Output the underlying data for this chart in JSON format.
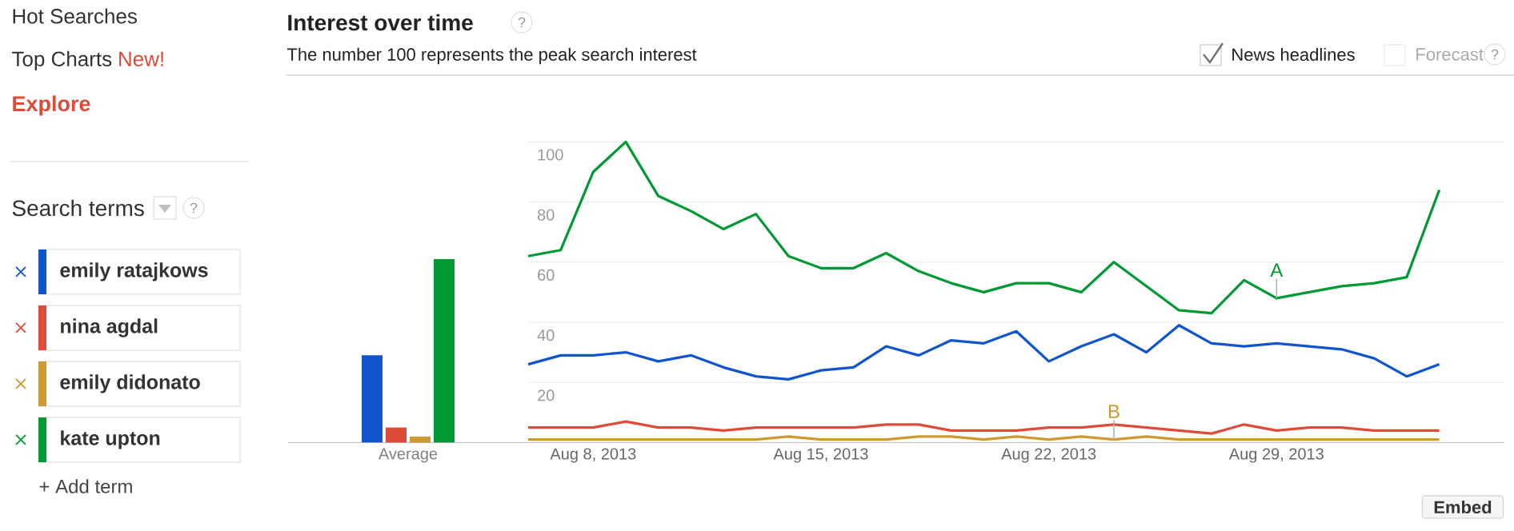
{
  "chart_data": [
    {
      "type": "bar",
      "title": "Interest over time",
      "subtitle": "The number 100 represents the peak search interest",
      "categories": [
        "Average"
      ],
      "ylim": [
        0,
        100
      ],
      "tick_labels": "x",
      "series": [
        {
          "color": "#1155cc",
          "values": [
            29
          ]
        },
        {
          "color": "#dd4b39",
          "values": [
            5
          ]
        },
        {
          "color": "#cc9933",
          "values": [
            2
          ]
        },
        {
          "color": "#009933",
          "values": [
            61
          ]
        }
      ]
    },
    {
      "type": "line",
      "x": [
        "2013-08-06",
        "2013-08-07",
        "2013-08-08",
        "2013-08-09",
        "2013-08-10",
        "2013-08-11",
        "2013-08-12",
        "2013-08-13",
        "2013-08-14",
        "2013-08-15",
        "2013-08-16",
        "2013-08-17",
        "2013-08-18",
        "2013-08-19",
        "2013-08-20",
        "2013-08-21",
        "2013-08-22",
        "2013-08-23",
        "2013-08-24",
        "2013-08-25",
        "2013-08-26",
        "2013-08-27",
        "2013-08-28",
        "2013-08-29",
        "2013-08-30",
        "2013-08-31",
        "2013-09-01",
        "2013-09-02",
        "2013-09-03"
      ],
      "xlim": [
        "2013-08-06",
        "2013-09-05"
      ],
      "xticks": [
        {
          "value": "2013-08-08",
          "label": "Aug 8, 2013"
        },
        {
          "value": "2013-08-15",
          "label": "Aug 15, 2013"
        },
        {
          "value": "2013-08-22",
          "label": "Aug 22, 2013"
        },
        {
          "value": "2013-08-29",
          "label": "Aug 29, 2013"
        }
      ],
      "ylim": [
        0,
        100
      ],
      "yticks": [
        20,
        40,
        60,
        80,
        100
      ],
      "grid": "y",
      "legend": "left",
      "marker": "none",
      "line_style": "solid",
      "series": [
        {
          "name": "emily ratajkows",
          "color": "#1155cc",
          "values": [
            26,
            29,
            29,
            30,
            27,
            29,
            25,
            22,
            21,
            24,
            25,
            32,
            29,
            34,
            33,
            37,
            27,
            32,
            36,
            30,
            39,
            33,
            32,
            33,
            32,
            31,
            28,
            22,
            26
          ]
        },
        {
          "name": "nina agdal",
          "color": "#dd4b39",
          "values": [
            5,
            5,
            5,
            7,
            5,
            5,
            4,
            5,
            5,
            5,
            5,
            6,
            6,
            4,
            4,
            4,
            5,
            5,
            6,
            5,
            4,
            3,
            6,
            4,
            5,
            5,
            4,
            4,
            4
          ]
        },
        {
          "name": "emily didonato",
          "color": "#cc9933",
          "values": [
            1,
            1,
            1,
            1,
            1,
            1,
            1,
            1,
            2,
            1,
            1,
            1,
            2,
            2,
            1,
            2,
            1,
            2,
            1,
            2,
            1,
            1,
            1,
            1,
            1,
            1,
            1,
            1,
            1
          ]
        },
        {
          "name": "kate upton",
          "color": "#009933",
          "values": [
            62,
            64,
            90,
            100,
            82,
            77,
            71,
            76,
            62,
            58,
            58,
            63,
            57,
            53,
            50,
            53,
            53,
            50,
            60,
            52,
            44,
            43,
            54,
            48,
            50,
            52,
            53,
            55,
            84
          ]
        }
      ],
      "annotations": [
        "Hot Searches",
        "Top Charts",
        "New!",
        "Explore",
        "Search terms",
        "?",
        "+ Add term",
        "?",
        "News headlines",
        "Forecast",
        "?",
        "Embed",
        {
          "text": "A",
          "x": "2013-08-29",
          "y": 48
        },
        {
          "text": "B",
          "x": "2013-08-24",
          "y": 1
        }
      ]
    }
  ]
}
